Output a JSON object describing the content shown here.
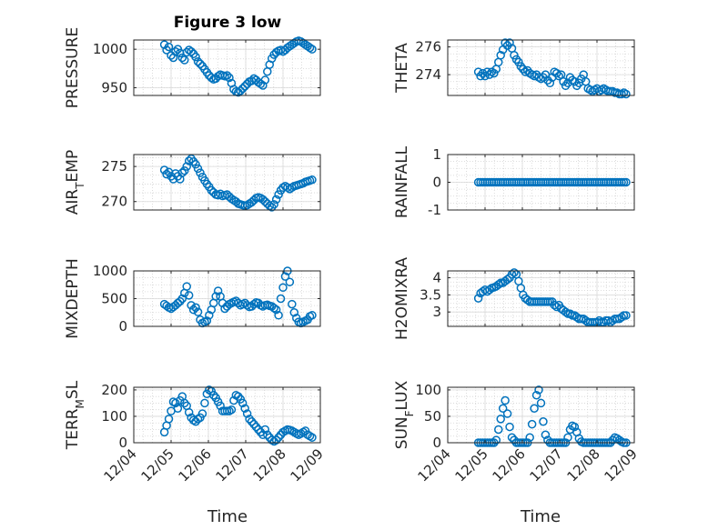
{
  "title": "Figure 3 low",
  "xlabel": "Time",
  "marker_color": "#0072BD",
  "chart_data": [
    {
      "type": "scatter",
      "ylabel_main": "PRESSURE",
      "ylabel_sub": "",
      "ylim": [
        940,
        1012
      ],
      "yticks": [
        950,
        1000
      ],
      "xlim": [
        0,
        5
      ],
      "xticks": [
        0,
        1,
        2,
        3,
        4,
        5
      ],
      "xticklabels": [
        "12/04",
        "12/05",
        "12/06",
        "12/07",
        "12/08",
        "12/09"
      ],
      "x": [
        0.82,
        0.88,
        0.94,
        1.0,
        1.06,
        1.12,
        1.18,
        1.24,
        1.3,
        1.36,
        1.42,
        1.48,
        1.54,
        1.6,
        1.66,
        1.72,
        1.78,
        1.84,
        1.9,
        1.96,
        2.02,
        2.08,
        2.14,
        2.2,
        2.26,
        2.32,
        2.38,
        2.44,
        2.5,
        2.56,
        2.62,
        2.68,
        2.74,
        2.8,
        2.86,
        2.92,
        2.98,
        3.04,
        3.1,
        3.16,
        3.22,
        3.28,
        3.34,
        3.4,
        3.46,
        3.52,
        3.58,
        3.64,
        3.7,
        3.76,
        3.82,
        3.88,
        3.94,
        4.0,
        4.06,
        4.12,
        4.18,
        4.24,
        4.3,
        4.36,
        4.42,
        4.48,
        4.54,
        4.6,
        4.66,
        4.72,
        4.78
      ],
      "values": [
        1006,
        999,
        1003,
        992,
        989,
        997,
        1000,
        995,
        989,
        986,
        996,
        999,
        997,
        994,
        990,
        984,
        981,
        978,
        974,
        970,
        966,
        963,
        961,
        962,
        965,
        967,
        966,
        965,
        966,
        963,
        956,
        948,
        945,
        944,
        946,
        949,
        952,
        955,
        958,
        959,
        962,
        960,
        957,
        955,
        953,
        960,
        971,
        980,
        988,
        993,
        996,
        998,
        999,
        997,
        999,
        1002,
        1004,
        1006,
        1008,
        1010,
        1011,
        1010,
        1008,
        1006,
        1004,
        1002,
        1000
      ]
    },
    {
      "type": "scatter",
      "ylabel_main": "THETA",
      "ylabel_sub": "",
      "ylim": [
        272.5,
        276.5
      ],
      "yticks": [
        274,
        276
      ],
      "xlim": [
        0,
        5
      ],
      "xticks": [
        0,
        1,
        2,
        3,
        4,
        5
      ],
      "xticklabels": [
        "12/04",
        "12/05",
        "12/06",
        "12/07",
        "12/08",
        "12/09"
      ],
      "x": [
        0.82,
        0.88,
        0.94,
        1.0,
        1.06,
        1.12,
        1.18,
        1.24,
        1.3,
        1.36,
        1.42,
        1.48,
        1.54,
        1.6,
        1.66,
        1.72,
        1.78,
        1.84,
        1.9,
        1.96,
        2.02,
        2.08,
        2.14,
        2.2,
        2.26,
        2.32,
        2.38,
        2.44,
        2.5,
        2.56,
        2.62,
        2.68,
        2.74,
        2.8,
        2.86,
        2.92,
        2.98,
        3.04,
        3.1,
        3.16,
        3.22,
        3.28,
        3.34,
        3.4,
        3.46,
        3.52,
        3.58,
        3.64,
        3.7,
        3.76,
        3.82,
        3.88,
        3.94,
        4.0,
        4.06,
        4.12,
        4.18,
        4.24,
        4.3,
        4.36,
        4.42,
        4.48,
        4.54,
        4.6,
        4.66,
        4.72,
        4.78
      ],
      "values": [
        274.2,
        273.9,
        274.1,
        273.9,
        274.2,
        274.0,
        274.2,
        274.1,
        274.4,
        274.9,
        275.4,
        275.8,
        276.3,
        276.1,
        276.3,
        275.9,
        275.4,
        275.1,
        274.9,
        274.6,
        274.4,
        274.2,
        274.3,
        274.1,
        274.0,
        273.9,
        274.0,
        273.8,
        273.7,
        273.8,
        274.0,
        273.6,
        273.4,
        273.8,
        274.2,
        274.1,
        273.9,
        274.0,
        273.5,
        273.2,
        273.4,
        273.8,
        273.6,
        273.5,
        273.2,
        273.4,
        273.7,
        274.0,
        273.5,
        273.0,
        272.9,
        272.8,
        272.9,
        273.0,
        272.8,
        272.9,
        273.0,
        272.9,
        272.8,
        272.8,
        272.8,
        272.7,
        272.7,
        272.6,
        272.6,
        272.7,
        272.6
      ]
    },
    {
      "type": "scatter",
      "ylabel_main": "AIR",
      "ylabel_sub": "T",
      "ylabel_tail": "EMP",
      "ylim": [
        268.8,
        276.7
      ],
      "yticks": [
        270,
        275
      ],
      "xlim": [
        0,
        5
      ],
      "xticks": [
        0,
        1,
        2,
        3,
        4,
        5
      ],
      "xticklabels": [
        "12/04",
        "12/05",
        "12/06",
        "12/07",
        "12/08",
        "12/09"
      ],
      "x": [
        0.82,
        0.88,
        0.94,
        1.0,
        1.06,
        1.12,
        1.18,
        1.24,
        1.3,
        1.36,
        1.42,
        1.48,
        1.54,
        1.6,
        1.66,
        1.72,
        1.78,
        1.84,
        1.9,
        1.96,
        2.02,
        2.08,
        2.14,
        2.2,
        2.26,
        2.32,
        2.38,
        2.44,
        2.5,
        2.56,
        2.62,
        2.68,
        2.74,
        2.8,
        2.86,
        2.92,
        2.98,
        3.04,
        3.1,
        3.16,
        3.22,
        3.28,
        3.34,
        3.4,
        3.46,
        3.52,
        3.58,
        3.64,
        3.7,
        3.76,
        3.82,
        3.88,
        3.94,
        4.0,
        4.06,
        4.12,
        4.18,
        4.24,
        4.3,
        4.36,
        4.42,
        4.48,
        4.54,
        4.6,
        4.66,
        4.72,
        4.78
      ],
      "values": [
        274.5,
        273.9,
        274.2,
        273.6,
        273.2,
        274.0,
        273.6,
        273.2,
        274.1,
        274.4,
        275.0,
        275.8,
        276.1,
        275.7,
        275.3,
        274.7,
        274.1,
        273.5,
        273.0,
        272.5,
        272.1,
        271.6,
        271.3,
        271.0,
        270.9,
        271.1,
        270.8,
        270.9,
        271.0,
        270.7,
        270.4,
        270.2,
        270.0,
        269.7,
        269.6,
        269.5,
        269.4,
        269.5,
        269.7,
        269.9,
        270.2,
        270.5,
        270.6,
        270.5,
        270.3,
        270.0,
        269.7,
        269.4,
        269.2,
        269.6,
        270.3,
        271.0,
        271.6,
        272.0,
        272.2,
        272.0,
        271.8,
        272.0,
        272.2,
        272.3,
        272.4,
        272.5,
        272.6,
        272.8,
        272.9,
        273.0,
        273.1
      ]
    },
    {
      "type": "scatter",
      "ylabel_main": "RAINFALL",
      "ylabel_sub": "",
      "ylim": [
        -1,
        1
      ],
      "yticks": [
        -1,
        0,
        1
      ],
      "xlim": [
        0,
        5
      ],
      "xticks": [
        0,
        1,
        2,
        3,
        4,
        5
      ],
      "xticklabels": [
        "12/04",
        "12/05",
        "12/06",
        "12/07",
        "12/08",
        "12/09"
      ],
      "x": [
        0.82,
        0.88,
        0.94,
        1.0,
        1.06,
        1.12,
        1.18,
        1.24,
        1.3,
        1.36,
        1.42,
        1.48,
        1.54,
        1.6,
        1.66,
        1.72,
        1.78,
        1.84,
        1.9,
        1.96,
        2.02,
        2.08,
        2.14,
        2.2,
        2.26,
        2.32,
        2.38,
        2.44,
        2.5,
        2.56,
        2.62,
        2.68,
        2.74,
        2.8,
        2.86,
        2.92,
        2.98,
        3.04,
        3.1,
        3.16,
        3.22,
        3.28,
        3.34,
        3.4,
        3.46,
        3.52,
        3.58,
        3.64,
        3.7,
        3.76,
        3.82,
        3.88,
        3.94,
        4.0,
        4.06,
        4.12,
        4.18,
        4.24,
        4.3,
        4.36,
        4.42,
        4.48,
        4.54,
        4.6,
        4.66,
        4.72,
        4.78
      ],
      "values": [
        0,
        0,
        0,
        0,
        0,
        0,
        0,
        0,
        0,
        0,
        0,
        0,
        0,
        0,
        0,
        0,
        0,
        0,
        0,
        0,
        0,
        0,
        0,
        0,
        0,
        0,
        0,
        0,
        0,
        0,
        0,
        0,
        0,
        0,
        0,
        0,
        0,
        0,
        0,
        0,
        0,
        0,
        0,
        0,
        0,
        0,
        0,
        0,
        0,
        0,
        0,
        0,
        0,
        0,
        0,
        0,
        0,
        0,
        0,
        0,
        0,
        0,
        0,
        0,
        0,
        0,
        0
      ]
    },
    {
      "type": "scatter",
      "ylabel_main": "MIXDEPTH",
      "ylabel_sub": "",
      "ylim": [
        0,
        1000
      ],
      "yticks": [
        0,
        500,
        1000
      ],
      "xlim": [
        0,
        5
      ],
      "xticks": [
        0,
        1,
        2,
        3,
        4,
        5
      ],
      "xticklabels": [
        "12/04",
        "12/05",
        "12/06",
        "12/07",
        "12/08",
        "12/09"
      ],
      "x": [
        0.82,
        0.88,
        0.94,
        1.0,
        1.06,
        1.12,
        1.18,
        1.24,
        1.3,
        1.36,
        1.42,
        1.48,
        1.54,
        1.6,
        1.66,
        1.72,
        1.78,
        1.84,
        1.9,
        1.96,
        2.02,
        2.08,
        2.14,
        2.2,
        2.26,
        2.32,
        2.38,
        2.44,
        2.5,
        2.56,
        2.62,
        2.68,
        2.74,
        2.8,
        2.86,
        2.92,
        2.98,
        3.04,
        3.1,
        3.16,
        3.22,
        3.28,
        3.34,
        3.4,
        3.46,
        3.52,
        3.58,
        3.64,
        3.7,
        3.76,
        3.82,
        3.88,
        3.94,
        4.0,
        4.06,
        4.12,
        4.18,
        4.24,
        4.3,
        4.36,
        4.42,
        4.48,
        4.54,
        4.6,
        4.66,
        4.72,
        4.78
      ],
      "values": [
        400,
        370,
        340,
        320,
        350,
        380,
        420,
        450,
        500,
        600,
        720,
        560,
        380,
        300,
        340,
        260,
        120,
        60,
        80,
        100,
        200,
        300,
        420,
        540,
        640,
        540,
        420,
        320,
        360,
        400,
        420,
        440,
        460,
        420,
        380,
        400,
        420,
        380,
        350,
        360,
        400,
        430,
        420,
        380,
        360,
        380,
        390,
        370,
        360,
        330,
        300,
        200,
        500,
        700,
        900,
        1000,
        800,
        400,
        250,
        150,
        80,
        60,
        80,
        100,
        120,
        180,
        200
      ]
    },
    {
      "type": "scatter",
      "ylabel_main": "H2OMIXRA",
      "ylabel_sub": "",
      "ylim": [
        2.58,
        4.2
      ],
      "yticks": [
        3,
        3.5,
        4
      ],
      "xlim": [
        0,
        5
      ],
      "xticks": [
        0,
        1,
        2,
        3,
        4,
        5
      ],
      "xticklabels": [
        "12/04",
        "12/05",
        "12/06",
        "12/07",
        "12/08",
        "12/09"
      ],
      "x": [
        0.82,
        0.88,
        0.94,
        1.0,
        1.06,
        1.12,
        1.18,
        1.24,
        1.3,
        1.36,
        1.42,
        1.48,
        1.54,
        1.6,
        1.66,
        1.72,
        1.78,
        1.84,
        1.9,
        1.96,
        2.02,
        2.08,
        2.14,
        2.2,
        2.26,
        2.32,
        2.38,
        2.44,
        2.5,
        2.56,
        2.62,
        2.68,
        2.74,
        2.8,
        2.86,
        2.92,
        2.98,
        3.04,
        3.1,
        3.16,
        3.22,
        3.28,
        3.34,
        3.4,
        3.46,
        3.52,
        3.58,
        3.64,
        3.7,
        3.76,
        3.82,
        3.88,
        3.94,
        4.0,
        4.06,
        4.12,
        4.18,
        4.24,
        4.3,
        4.36,
        4.42,
        4.48,
        4.54,
        4.6,
        4.66,
        4.72,
        4.78
      ],
      "values": [
        3.4,
        3.55,
        3.6,
        3.65,
        3.6,
        3.65,
        3.7,
        3.72,
        3.75,
        3.8,
        3.85,
        3.85,
        3.9,
        3.95,
        4.0,
        4.1,
        4.15,
        4.1,
        3.9,
        3.7,
        3.5,
        3.4,
        3.35,
        3.3,
        3.3,
        3.3,
        3.3,
        3.3,
        3.3,
        3.3,
        3.3,
        3.3,
        3.3,
        3.3,
        3.2,
        3.15,
        3.2,
        3.1,
        3.05,
        3.0,
        2.95,
        2.95,
        2.9,
        2.9,
        2.85,
        2.8,
        2.8,
        2.8,
        2.75,
        2.7,
        2.7,
        2.7,
        2.7,
        2.7,
        2.75,
        2.7,
        2.7,
        2.75,
        2.75,
        2.7,
        2.75,
        2.8,
        2.8,
        2.8,
        2.85,
        2.9,
        2.9
      ]
    },
    {
      "type": "scatter",
      "ylabel_main": "TERR",
      "ylabel_sub": "M",
      "ylabel_tail": "SL",
      "ylim": [
        0,
        210
      ],
      "yticks": [
        0,
        100,
        200
      ],
      "xlim": [
        0,
        5
      ],
      "xticks": [
        0,
        1,
        2,
        3,
        4,
        5
      ],
      "xticklabels": [
        "12/04",
        "12/05",
        "12/06",
        "12/07",
        "12/08",
        "12/09"
      ],
      "x": [
        0.82,
        0.88,
        0.94,
        1.0,
        1.06,
        1.12,
        1.18,
        1.24,
        1.3,
        1.36,
        1.42,
        1.48,
        1.54,
        1.6,
        1.66,
        1.72,
        1.78,
        1.84,
        1.9,
        1.96,
        2.02,
        2.08,
        2.14,
        2.2,
        2.26,
        2.32,
        2.38,
        2.44,
        2.5,
        2.56,
        2.62,
        2.68,
        2.74,
        2.8,
        2.86,
        2.92,
        2.98,
        3.04,
        3.1,
        3.16,
        3.22,
        3.28,
        3.34,
        3.4,
        3.46,
        3.52,
        3.58,
        3.64,
        3.7,
        3.76,
        3.82,
        3.88,
        3.94,
        4.0,
        4.06,
        4.12,
        4.18,
        4.24,
        4.3,
        4.36,
        4.42,
        4.48,
        4.54,
        4.6,
        4.66,
        4.72,
        4.78
      ],
      "values": [
        40,
        65,
        90,
        120,
        155,
        150,
        130,
        160,
        175,
        150,
        140,
        115,
        95,
        85,
        80,
        90,
        95,
        110,
        150,
        185,
        200,
        195,
        180,
        170,
        155,
        140,
        120,
        120,
        120,
        120,
        125,
        160,
        180,
        175,
        165,
        150,
        130,
        110,
        90,
        80,
        70,
        60,
        50,
        40,
        30,
        50,
        30,
        20,
        10,
        5,
        10,
        20,
        30,
        40,
        45,
        50,
        48,
        45,
        40,
        35,
        30,
        35,
        40,
        45,
        30,
        25,
        20
      ]
    },
    {
      "type": "scatter",
      "ylabel_main": "SUN",
      "ylabel_sub": "F",
      "ylabel_tail": "LUX",
      "ylim": [
        0,
        105
      ],
      "yticks": [
        0,
        50,
        100
      ],
      "xlim": [
        0,
        5
      ],
      "xticks": [
        0,
        1,
        2,
        3,
        4,
        5
      ],
      "xticklabels": [
        "12/04",
        "12/05",
        "12/06",
        "12/07",
        "12/08",
        "12/09"
      ],
      "x": [
        0.82,
        0.88,
        0.94,
        1.0,
        1.06,
        1.12,
        1.18,
        1.24,
        1.3,
        1.36,
        1.42,
        1.48,
        1.54,
        1.6,
        1.66,
        1.72,
        1.78,
        1.84,
        1.9,
        1.96,
        2.02,
        2.08,
        2.14,
        2.2,
        2.26,
        2.32,
        2.38,
        2.44,
        2.5,
        2.56,
        2.62,
        2.68,
        2.74,
        2.8,
        2.86,
        2.92,
        2.98,
        3.04,
        3.1,
        3.16,
        3.22,
        3.28,
        3.34,
        3.4,
        3.46,
        3.52,
        3.58,
        3.64,
        3.7,
        3.76,
        3.82,
        3.88,
        3.94,
        4.0,
        4.06,
        4.12,
        4.18,
        4.24,
        4.3,
        4.36,
        4.42,
        4.48,
        4.54,
        4.6,
        4.66,
        4.72,
        4.78
      ],
      "values": [
        0,
        0,
        0,
        0,
        0,
        0,
        0,
        0,
        5,
        25,
        45,
        65,
        80,
        55,
        30,
        10,
        5,
        0,
        0,
        0,
        0,
        0,
        0,
        10,
        35,
        65,
        90,
        100,
        75,
        40,
        15,
        5,
        0,
        0,
        0,
        0,
        0,
        0,
        0,
        0,
        10,
        25,
        32,
        30,
        20,
        8,
        2,
        0,
        0,
        0,
        0,
        0,
        0,
        0,
        0,
        0,
        0,
        0,
        0,
        0,
        5,
        10,
        8,
        5,
        2,
        0,
        0
      ]
    }
  ]
}
